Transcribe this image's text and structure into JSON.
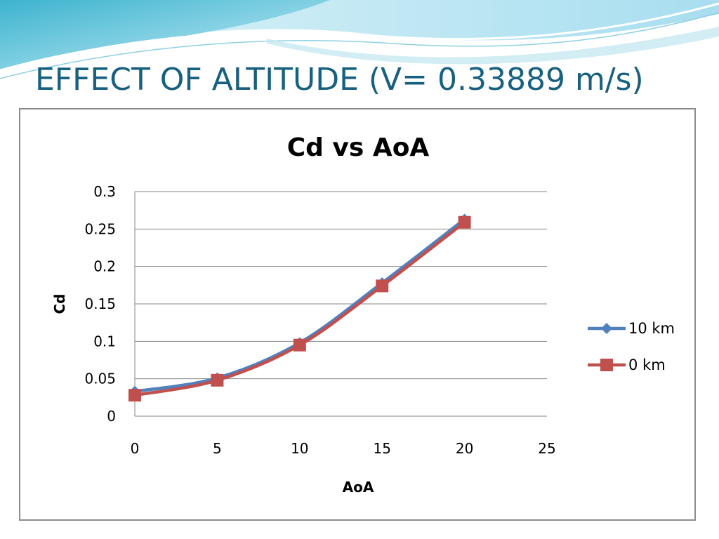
{
  "slide": {
    "title": "EFFECT OF ALTITUDE (V= 0.33889 m/s)"
  },
  "colors": {
    "title": "#17607f",
    "series_10km": "#4f81bd",
    "series_0km": "#c0504d",
    "gridline": "#868686",
    "header_wave_light": "#bfe7f1",
    "header_wave_mid": "#6fcadc",
    "header_wave_dark": "#2aa9c6"
  },
  "chart_data": {
    "type": "line",
    "title": "Cd vs AoA",
    "xlabel": "AoA",
    "ylabel": "Cd",
    "xlim": [
      0,
      25
    ],
    "ylim": [
      0,
      0.3
    ],
    "x_ticks": [
      "0",
      "5",
      "10",
      "15",
      "20",
      "25"
    ],
    "y_ticks": [
      "0",
      "0.05",
      "0.1",
      "0.15",
      "0.2",
      "0.25",
      "0.3"
    ],
    "grid": "horizontal",
    "legend_position": "right",
    "smooth": true,
    "series": [
      {
        "name": "10 km",
        "marker": "diamond",
        "color": "#4f81bd",
        "x": [
          0,
          5,
          10,
          15,
          20
        ],
        "y": [
          0.033,
          0.051,
          0.098,
          0.178,
          0.263
        ]
      },
      {
        "name": "0 km",
        "marker": "square",
        "color": "#c0504d",
        "x": [
          0,
          5,
          10,
          15,
          20
        ],
        "y": [
          0.028,
          0.048,
          0.095,
          0.174,
          0.259
        ]
      }
    ]
  }
}
